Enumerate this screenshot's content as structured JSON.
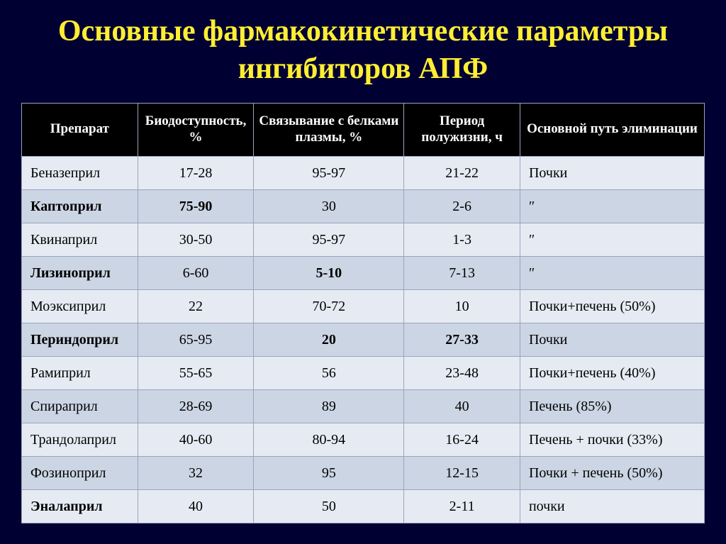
{
  "title": "Основные фармакокинетические параметры ингибиторов АПФ",
  "table": {
    "type": "table",
    "background_color": "#000033",
    "header_bg": "#000000",
    "header_text_color": "#ffffff",
    "row_colors": [
      "#e6ebf3",
      "#ccd5e4"
    ],
    "border_color": "#9aa4bd",
    "title_color": "#ffee33",
    "header_fontsize": 19,
    "cell_fontsize": 20,
    "title_fontsize": 42,
    "col_widths_pct": [
      17,
      17,
      22,
      17,
      27
    ],
    "columns": [
      {
        "key": "drug",
        "label": "Препарат",
        "align": "left"
      },
      {
        "key": "bio",
        "label": "Биодоступность, %",
        "align": "center"
      },
      {
        "key": "bind",
        "label": "Связывание с белками плазмы, %",
        "align": "center"
      },
      {
        "key": "half",
        "label": "Период полужизни, ч",
        "align": "center"
      },
      {
        "key": "elim",
        "label": "Основной путь элиминации",
        "align": "left"
      }
    ],
    "rows": [
      {
        "drug": "Беназеприл",
        "drug_bold": false,
        "bio": "17-28",
        "bio_bold": false,
        "bind": "95-97",
        "bind_bold": false,
        "half": "21-22",
        "half_bold": false,
        "elim": "Почки",
        "elim_bold": false
      },
      {
        "drug": "Каптоприл",
        "drug_bold": true,
        "bio": "75-90",
        "bio_bold": true,
        "bind": "30",
        "bind_bold": false,
        "half": "2-6",
        "half_bold": false,
        "elim": "″",
        "elim_bold": false
      },
      {
        "drug": "Квинаприл",
        "drug_bold": false,
        "bio": "30-50",
        "bio_bold": false,
        "bind": "95-97",
        "bind_bold": false,
        "half": "1-3",
        "half_bold": false,
        "elim": "″",
        "elim_bold": false
      },
      {
        "drug": "Лизиноприл",
        "drug_bold": true,
        "bio": "6-60",
        "bio_bold": false,
        "bind": "5-10",
        "bind_bold": true,
        "half": "7-13",
        "half_bold": false,
        "elim": "″",
        "elim_bold": false
      },
      {
        "drug": "Моэксиприл",
        "drug_bold": false,
        "bio": "22",
        "bio_bold": false,
        "bind": "70-72",
        "bind_bold": false,
        "half": "10",
        "half_bold": false,
        "elim": "Почки+печень (50%)",
        "elim_bold": false
      },
      {
        "drug": "Периндоприл",
        "drug_bold": true,
        "bio": "65-95",
        "bio_bold": false,
        "bind": "20",
        "bind_bold": true,
        "half": "27-33",
        "half_bold": true,
        "elim": "Почки",
        "elim_bold": false
      },
      {
        "drug": "Рамиприл",
        "drug_bold": false,
        "bio": "55-65",
        "bio_bold": false,
        "bind": "56",
        "bind_bold": false,
        "half": "23-48",
        "half_bold": false,
        "elim": "Почки+печень (40%)",
        "elim_bold": false
      },
      {
        "drug": "Спираприл",
        "drug_bold": false,
        "bio": "28-69",
        "bio_bold": false,
        "bind": "89",
        "bind_bold": false,
        "half": "40",
        "half_bold": false,
        "elim": "Печень (85%)",
        "elim_bold": false
      },
      {
        "drug": "Трандолаприл",
        "drug_bold": false,
        "bio": "40-60",
        "bio_bold": false,
        "bind": "80-94",
        "bind_bold": false,
        "half": "16-24",
        "half_bold": false,
        "elim": "Печень + почки (33%)",
        "elim_bold": false
      },
      {
        "drug": "Фозиноприл",
        "drug_bold": false,
        "bio": "32",
        "bio_bold": false,
        "bind": "95",
        "bind_bold": false,
        "half": "12-15",
        "half_bold": false,
        "elim": "Почки + печень (50%)",
        "elim_bold": false
      },
      {
        "drug": "Эналаприл",
        "drug_bold": true,
        "bio": "40",
        "bio_bold": false,
        "bind": "50",
        "bind_bold": false,
        "half": "2-11",
        "half_bold": false,
        "elim": "почки",
        "elim_bold": false
      }
    ]
  }
}
